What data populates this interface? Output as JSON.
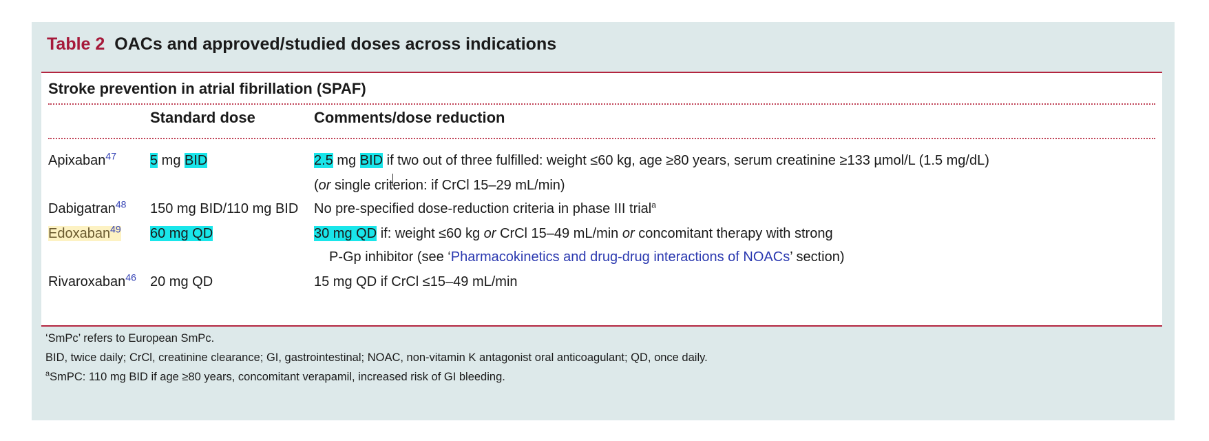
{
  "title": {
    "number": "Table 2",
    "text": "OACs and approved/studied doses across indications"
  },
  "section_heading": "Stroke prevention in atrial fibrillation (SPAF)",
  "columns": {
    "dose": "Standard dose",
    "comments": "Comments/dose reduction"
  },
  "rows": {
    "apixaban": {
      "drug": "Apixaban",
      "ref": "47",
      "dose_hl1": "5",
      "dose_mid": " mg ",
      "dose_hl2": "BID",
      "c_hl1": "2.5",
      "c_mid": " mg ",
      "c_hl2": "BID",
      "c_rest": " if two out of three fulfilled: weight ≤60 kg, age ≥80 years, serum creatinine ≥133 µmol/L (1.5 mg/dL)",
      "c2_open": "(",
      "c2_or": "or",
      "c2_rest": " single criterion: if CrCl 15–29 mL/min)"
    },
    "dabigatran": {
      "drug": "Dabigatran",
      "ref": "48",
      "dose": "150 mg BID/110 mg BID",
      "comment": "No pre-specified dose-reduction criteria in phase III trial",
      "fn": "a"
    },
    "edoxaban": {
      "drug": "Edoxaban",
      "ref": "49",
      "dose": "60 mg QD",
      "c_hl": "30 mg QD",
      "c_a": " if: weight ≤60 kg ",
      "c_or1": "or",
      "c_b": " CrCl 15–49 mL/min ",
      "c_or2": "or",
      "c_c": " concomitant therapy with strong",
      "c2_a": "P-Gp inhibitor (see ‘",
      "c2_link": "Pharmacokinetics and drug-drug interactions of NOACs",
      "c2_b": "’ section)"
    },
    "rivaroxaban": {
      "drug": "Rivaroxaban",
      "ref": "46",
      "dose": "20 mg QD",
      "comment": "15 mg QD if CrCl ≤15–49 mL/min"
    }
  },
  "footnotes": {
    "line1": "‘SmPc’ refers to European SmPc.",
    "line2": "BID, twice daily; CrCl, creatinine clearance; GI, gastrointestinal; NOAC, non-vitamin K antagonist oral anticoagulant; QD, once daily.",
    "line3_sup": "a",
    "line3": "SmPC: 110 mg BID if age ≥80 years, concomitant verapamil, increased risk of GI bleeding."
  },
  "colors": {
    "panel": "#dde9ea",
    "accent": "#a6193a",
    "highlight": "#19e6ea",
    "link": "#2b39b0"
  }
}
